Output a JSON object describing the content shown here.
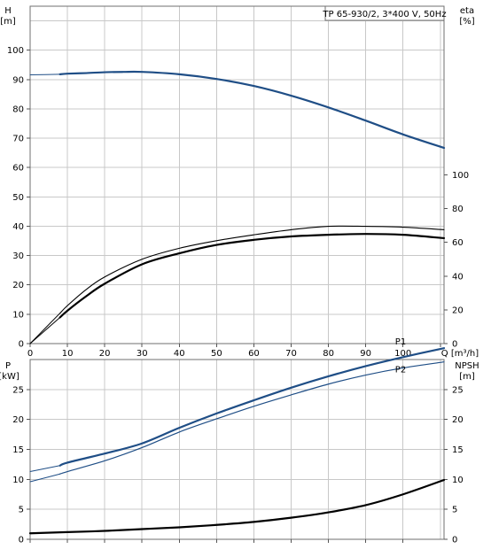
{
  "title": "TP 65-930/2, 3*400 V, 50Hz",
  "colors": {
    "blue": "#1f4e86",
    "black": "#000000",
    "grid": "#c8c8c8",
    "frame": "#6f6f6f"
  },
  "chart_data": [
    {
      "type": "line",
      "panel": "head-efficiency",
      "title": "TP 65-930/2, 3*400 V, 50Hz",
      "left_axis_label": [
        "H",
        "[m]"
      ],
      "right_axis_label": [
        "eta",
        "[%]"
      ],
      "x_axis_label": "Q [m³/h]",
      "x_ticks": [
        "0",
        "10",
        "20",
        "30",
        "40",
        "50",
        "60",
        "70",
        "80",
        "90",
        "100"
      ],
      "x_last_tick_label": "Q [m³/h]",
      "xlim": [
        0,
        111
      ],
      "left_ticks": [
        "0",
        "10",
        "20",
        "30",
        "40",
        "50",
        "60",
        "70",
        "80",
        "90",
        "100"
      ],
      "ylim": [
        0,
        115
      ],
      "right_ticks": [
        "0",
        "20",
        "40",
        "60",
        "80",
        "100"
      ],
      "right_ylim": [
        0,
        200
      ],
      "grid": true,
      "series": [
        {
          "key": "H",
          "axis": "left",
          "color": "#1f4e86",
          "width": 2.2,
          "x": [
            0,
            8,
            10,
            15,
            20,
            25,
            30,
            40,
            50,
            60,
            70,
            80,
            90,
            100,
            111
          ],
          "y": [
            91.6,
            91.8,
            92.0,
            92.2,
            92.5,
            92.6,
            92.6,
            91.8,
            90.2,
            87.8,
            84.5,
            80.5,
            76.0,
            71.3,
            66.7
          ],
          "dashed_to": 8
        },
        {
          "key": "eta",
          "axis": "right",
          "color": "#000000",
          "width": 1.1,
          "x": [
            0,
            8,
            10,
            15,
            20,
            30,
            40,
            50,
            60,
            70,
            80,
            90,
            100,
            111
          ],
          "y": [
            0,
            18,
            22.5,
            32,
            39.5,
            50,
            56.5,
            61,
            64.5,
            67.5,
            69.5,
            69.5,
            69,
            67.5
          ],
          "dashed_to": 8
        },
        {
          "key": "eta_main",
          "axis": "right",
          "color": "#000000",
          "width": 2.2,
          "x": [
            0,
            8,
            10,
            15,
            20,
            30,
            40,
            50,
            60,
            70,
            80,
            90,
            100,
            111
          ],
          "y": [
            0,
            15.5,
            19.5,
            28,
            35.5,
            47,
            53.5,
            58.5,
            61.5,
            63.5,
            64.5,
            65,
            64.5,
            62.5
          ],
          "dashed_to": 8
        }
      ]
    },
    {
      "type": "line",
      "panel": "power-npsh",
      "left_axis_label": [
        "P",
        "[kW]"
      ],
      "right_axis_label": [
        "NPSH",
        "[m]"
      ],
      "x_axis_label": "Q [m³/h]",
      "xlim": [
        0,
        111
      ],
      "left_ticks": [
        "0",
        "5",
        "10",
        "15",
        "20",
        "25"
      ],
      "ylim": [
        0,
        30
      ],
      "right_ticks": [
        "0",
        "5",
        "10",
        "15",
        "20",
        "25"
      ],
      "right_ylim": [
        0,
        30
      ],
      "grid": true,
      "series": [
        {
          "name": "P1",
          "axis": "left",
          "color": "#1f4e86",
          "width": 2.2,
          "x": [
            0,
            8,
            10,
            20,
            30,
            40,
            50,
            60,
            70,
            80,
            90,
            100,
            111
          ],
          "y": [
            11.3,
            12.3,
            12.8,
            14.3,
            16.0,
            18.6,
            21.0,
            23.2,
            25.3,
            27.2,
            28.9,
            30.4,
            31.9
          ],
          "dashed_to": 8
        },
        {
          "name": "P2",
          "axis": "left",
          "color": "#1f4e86",
          "width": 1.2,
          "x": [
            0,
            8,
            10,
            20,
            30,
            40,
            50,
            60,
            70,
            80,
            90,
            100,
            111
          ],
          "y": [
            9.6,
            10.9,
            11.3,
            13.1,
            15.3,
            17.9,
            20.1,
            22.2,
            24.1,
            25.9,
            27.4,
            28.6,
            29.6
          ],
          "dashed_to": 8
        },
        {
          "key": "NPSH",
          "axis": "right",
          "color": "#000000",
          "width": 2.2,
          "x": [
            0,
            10,
            20,
            30,
            40,
            50,
            60,
            70,
            80,
            90,
            100,
            111
          ],
          "y": [
            1.0,
            1.2,
            1.4,
            1.7,
            2.0,
            2.4,
            2.9,
            3.6,
            4.5,
            5.7,
            7.5,
            9.9
          ]
        }
      ]
    }
  ]
}
